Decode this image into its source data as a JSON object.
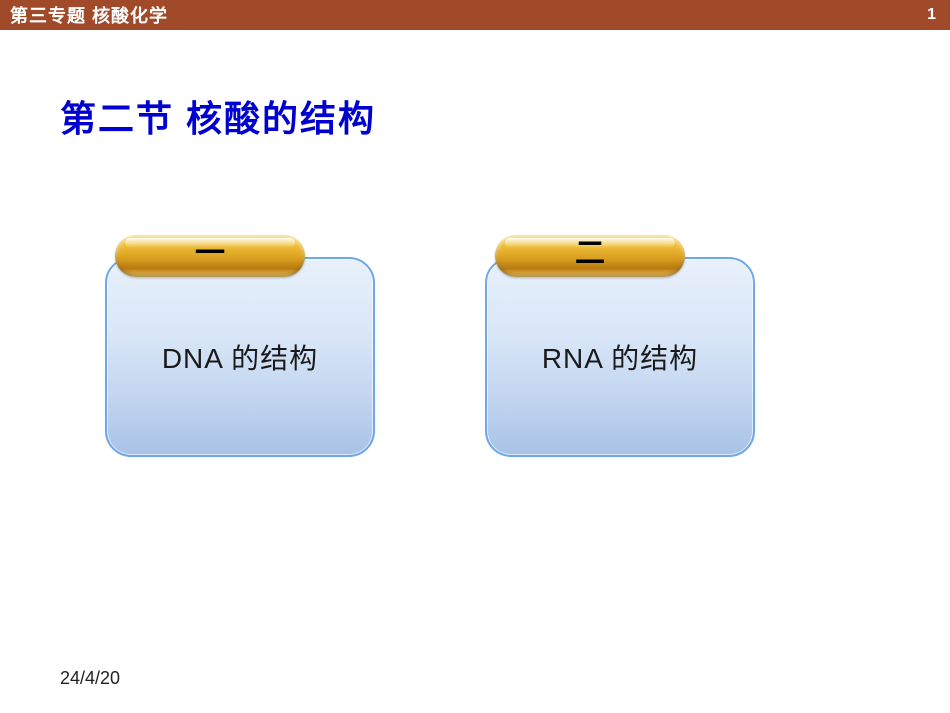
{
  "header": {
    "title": "第三专题   核酸化学",
    "page_number": "1",
    "bg_color": "#a04a2a",
    "text_color": "#ffffff"
  },
  "section": {
    "title": "第二节  核酸的结构",
    "title_color": "#0000d0",
    "title_fontsize": 36
  },
  "cards": [
    {
      "badge": "一",
      "text": "DNA 的结构"
    },
    {
      "badge": "二",
      "text": "RNA 的结构"
    }
  ],
  "card_style": {
    "border_color": "#6fa8e8",
    "bg_gradient_top": "#e8f0fb",
    "bg_gradient_bottom": "#a8c2e6",
    "text_color": "#1a1a1a",
    "text_fontsize": 28,
    "border_radius": 26
  },
  "pill_style": {
    "gradient_top": "#f7d87a",
    "gradient_mid": "#d9a020",
    "gradient_bottom": "#f0c860",
    "label_color": "#000000",
    "label_fontsize": 30
  },
  "footer": {
    "date": "24/4/20",
    "color": "#222222",
    "fontsize": 18
  }
}
